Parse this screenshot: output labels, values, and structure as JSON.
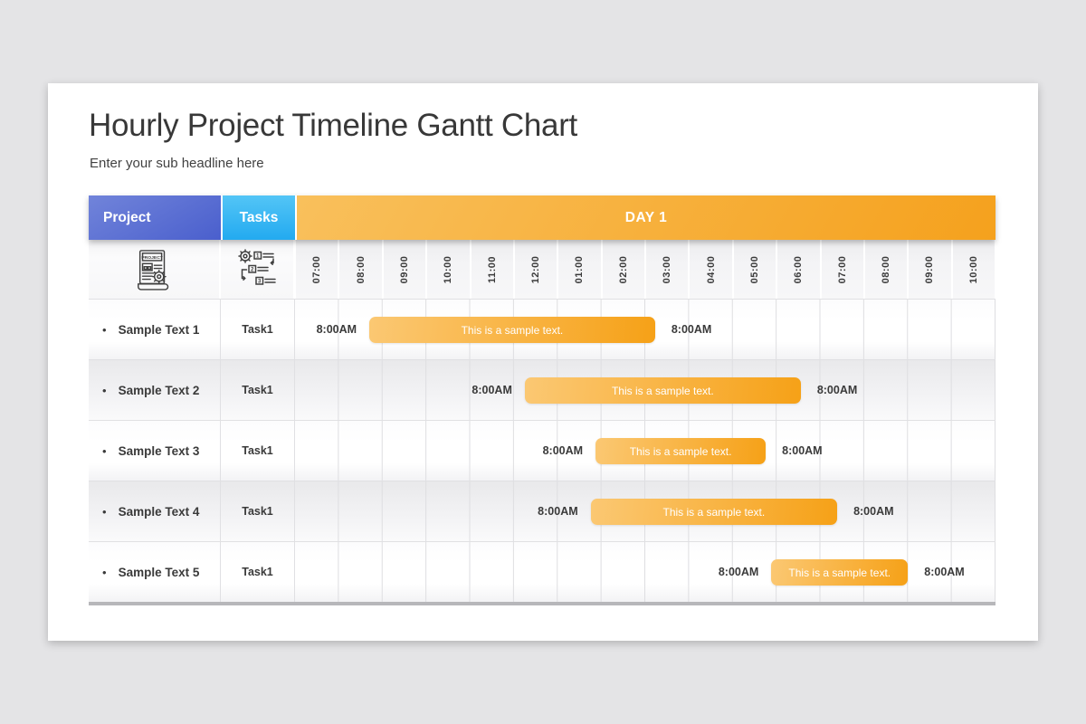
{
  "header": {
    "title": "Hourly Project Timeline Gantt Chart",
    "subtitle": "Enter your sub headline here"
  },
  "table": {
    "header": {
      "project_label": "Project",
      "tasks_label": "Tasks",
      "day_label": "DAY 1"
    },
    "icons": {
      "project_icon": "project-document-gear-icon",
      "tasks_icon": "numbered-task-list-gear-icon",
      "project_icon_text": "PROJECT",
      "tasks_icon_numbers": [
        "1",
        "2",
        "3"
      ]
    }
  },
  "chart_data": {
    "type": "bar",
    "variant": "gantt-timeline",
    "title": "Hourly Project Timeline Gantt Chart",
    "day_header": "DAY 1",
    "x_tick_labels": [
      "07:00",
      "08:00",
      "09:00",
      "10:00",
      "11:00",
      "12:00",
      "01:00",
      "02:00",
      "03:00",
      "04:00",
      "05:00",
      "06:00",
      "07:00",
      "08:00",
      "09:00",
      "10:00"
    ],
    "bullet": "•",
    "rows": [
      {
        "project": "Sample Text 1",
        "task": "Task1",
        "start_label": "8:00AM",
        "end_label": "8:00AM",
        "bar_label": "This is a sample text.",
        "bar_start_col": 1.7,
        "bar_end_col": 8.2,
        "bar_start_pct": 10.6,
        "bar_width_pct": 40.8
      },
      {
        "project": "Sample Text 2",
        "task": "Task1",
        "start_label": "8:00AM",
        "end_label": "8:00AM",
        "bar_label": "This is a sample text.",
        "bar_start_col": 5.3,
        "bar_end_col": 11.6,
        "bar_start_pct": 32.8,
        "bar_width_pct": 39.4
      },
      {
        "project": "Sample Text 3",
        "task": "Task1",
        "start_label": "8:00AM",
        "end_label": "8:00AM",
        "bar_label": "This is a sample text.",
        "bar_start_col": 6.9,
        "bar_end_col": 10.7,
        "bar_start_pct": 42.9,
        "bar_width_pct": 24.3
      },
      {
        "project": "Sample Text 4",
        "task": "Task1",
        "start_label": "8:00AM",
        "end_label": "8:00AM",
        "bar_label": "This is a sample text.",
        "bar_start_col": 6.8,
        "bar_end_col": 12.4,
        "bar_start_pct": 42.2,
        "bar_width_pct": 35.2
      },
      {
        "project": "Sample Text 5",
        "task": "Task1",
        "start_label": "8:00AM",
        "end_label": "8:00AM",
        "bar_label": "This is a sample text.",
        "bar_start_col": 10.9,
        "bar_end_col": 14.0,
        "bar_start_pct": 68.0,
        "bar_width_pct": 19.5
      }
    ]
  },
  "colors": {
    "page_background": "#e4e4e6",
    "card_background": "#ffffff",
    "project_header_gradient": [
      "#7184da",
      "#4a5fcd"
    ],
    "tasks_header_gradient": [
      "#53c5f6",
      "#23aaf0"
    ],
    "day_header_gradient": [
      "#f9c05c",
      "#f5a11d"
    ],
    "bar_gradient": [
      "#fbc873",
      "#f6a117"
    ],
    "bottom_border": "#b7b7ba",
    "text_dark": "#3a3a3a"
  }
}
